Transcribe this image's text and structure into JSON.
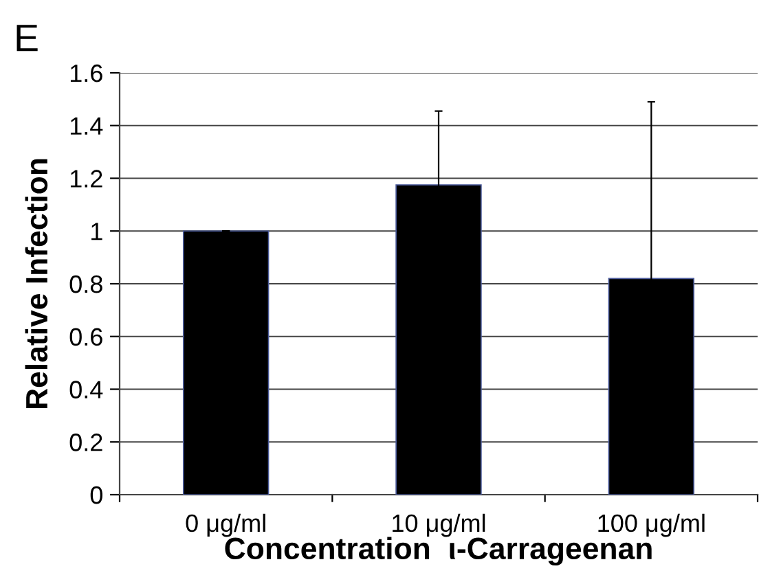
{
  "chart_data": {
    "type": "bar",
    "annotations": [
      "E"
    ],
    "categories": [
      "0 μg/ml",
      "10 μg/ml",
      "100 μg/ml"
    ],
    "values": [
      1.0,
      1.175,
      0.82
    ],
    "errors": [
      null,
      0.28,
      0.67
    ],
    "color": "#000000",
    "xlabel": "Concentration  ι-Carrageenan",
    "ylabel": "Relative Infection",
    "ylim": [
      0,
      1.6
    ],
    "yticks": [
      0,
      0.2,
      0.4,
      0.6,
      0.8,
      1,
      1.2,
      1.4,
      1.6
    ],
    "grid": "y"
  }
}
